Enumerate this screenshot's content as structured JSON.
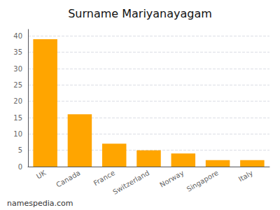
{
  "chart_data": {
    "type": "bar",
    "title": "Surname Mariyanayagam",
    "categories": [
      "UK",
      "Canada",
      "France",
      "Switzerland",
      "Norway",
      "Singapore",
      "Italy"
    ],
    "values": [
      39,
      16,
      7,
      5,
      4,
      2,
      2
    ],
    "color": "#FFA500",
    "ylim": [
      0,
      42
    ],
    "yticks": [
      0,
      5,
      10,
      15,
      20,
      25,
      30,
      35,
      40
    ],
    "grid": true,
    "annotations": [
      "namespedia.com"
    ]
  }
}
